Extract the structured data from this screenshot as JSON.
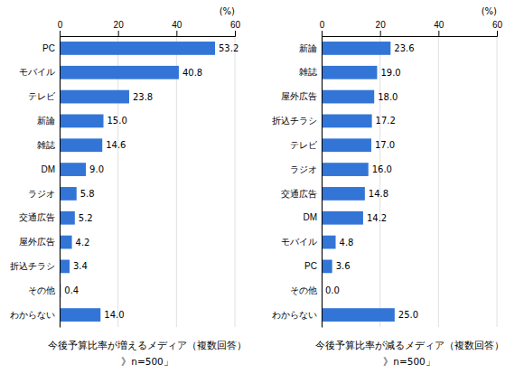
{
  "chart_data": [
    {
      "type": "bar",
      "orientation": "horizontal",
      "title": "今後予算比率が増えるメディア（複数回答）",
      "subtitle": "》n=500」",
      "x_label": "(%)",
      "categories": [
        "PC",
        "モバイル",
        "テレビ",
        "新論",
        "雑誌",
        "DM",
        "ラジオ",
        "交通広告",
        "屋外広告",
        "折込チラシ",
        "その他",
        "わからない"
      ],
      "values": [
        53.2,
        40.8,
        23.8,
        15.0,
        14.6,
        9.0,
        5.8,
        5.2,
        4.2,
        3.4,
        0.4,
        14.0
      ],
      "value_labels": [
        "53.2",
        "40.8",
        "23.8",
        "15.0",
        "14.6",
        "9.0",
        "5.8",
        "5.2",
        "4.2",
        "3.4",
        "0.4",
        "14.0"
      ],
      "color": "#3375d6",
      "xlim": [
        0,
        60
      ],
      "xticks": [
        0,
        20,
        40,
        60
      ],
      "grid": true,
      "data_labels": true
    },
    {
      "type": "bar",
      "orientation": "horizontal",
      "title": "今後予算比率が減るメディア（複数回答）",
      "subtitle": "》n=500」",
      "x_label": "(%)",
      "categories": [
        "新論",
        "雑誌",
        "屋外広告",
        "折込チラシ",
        "テレビ",
        "ラジオ",
        "交通広告",
        "DM",
        "モバイル",
        "PC",
        "その他",
        "わからない"
      ],
      "values": [
        23.6,
        19.0,
        18.0,
        17.2,
        17.0,
        16.0,
        14.8,
        14.2,
        4.8,
        3.6,
        0.0,
        25.0
      ],
      "value_labels": [
        "23.6",
        "19.0",
        "18.0",
        "17.2",
        "17.0",
        "16.0",
        "14.8",
        "14.2",
        "4.8",
        "3.6",
        "0.0",
        "25.0"
      ],
      "color": "#3375d6",
      "xlim": [
        0,
        60
      ],
      "xticks": [
        0,
        20,
        40,
        60
      ],
      "grid": true,
      "data_labels": true
    }
  ]
}
